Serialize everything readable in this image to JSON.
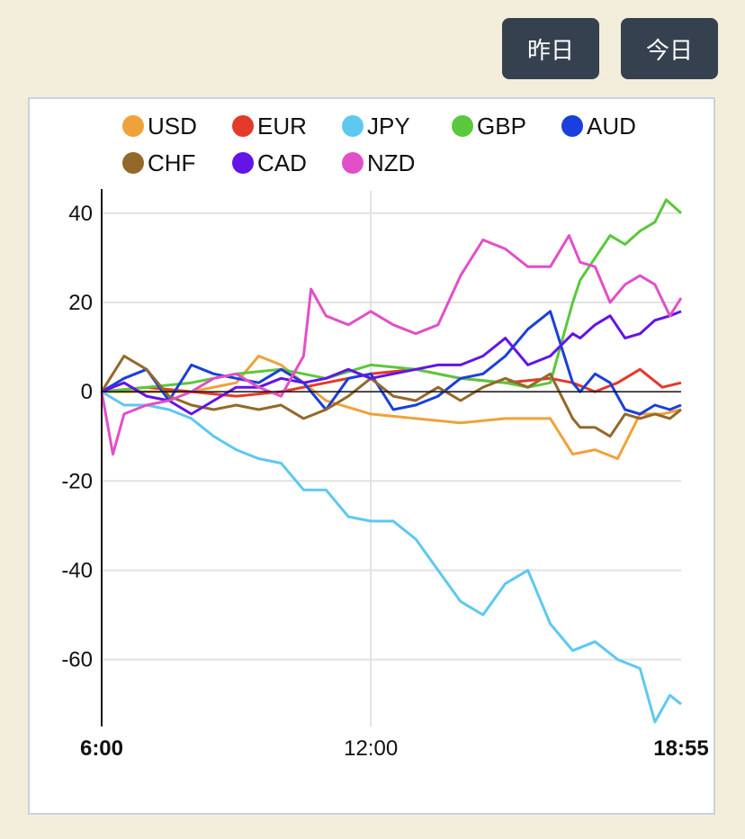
{
  "buttons": {
    "yesterday": "昨日",
    "today": "今日"
  },
  "chart_data": {
    "type": "line",
    "title": "",
    "xlabel": "",
    "ylabel": "",
    "ylim": [
      -75,
      45
    ],
    "yticks": [
      40,
      20,
      0,
      -20,
      -40,
      -60
    ],
    "xlim": [
      360,
      1135
    ],
    "xticks": [
      {
        "value": 360,
        "label": "6:00",
        "bold": true
      },
      {
        "value": 720,
        "label": "12:00",
        "bold": false
      },
      {
        "value": 1135,
        "label": "18:55",
        "bold": true
      }
    ],
    "grid": true,
    "legend_position": "top",
    "series": [
      {
        "name": "USD",
        "color": "#f0a23a",
        "x": [
          360,
          420,
          480,
          540,
          570,
          600,
          660,
          720,
          780,
          840,
          900,
          960,
          990,
          1020,
          1050,
          1080,
          1110,
          1135
        ],
        "values": [
          0,
          0,
          0,
          2,
          8,
          6,
          -2,
          -5,
          -6,
          -7,
          -6,
          -6,
          -14,
          -13,
          -15,
          -5,
          -5,
          -4
        ]
      },
      {
        "name": "EUR",
        "color": "#e33a2a",
        "x": [
          360,
          420,
          480,
          540,
          600,
          660,
          720,
          780,
          840,
          900,
          960,
          990,
          1020,
          1050,
          1080,
          1110,
          1135
        ],
        "values": [
          0,
          1,
          0,
          -1,
          0,
          2,
          4,
          5,
          3,
          2,
          3,
          2,
          0,
          2,
          5,
          1,
          2
        ]
      },
      {
        "name": "JPY",
        "color": "#5ec8f0",
        "x": [
          360,
          390,
          420,
          450,
          480,
          510,
          540,
          570,
          600,
          630,
          660,
          690,
          720,
          750,
          780,
          810,
          840,
          870,
          900,
          930,
          960,
          990,
          1020,
          1050,
          1080,
          1100,
          1120,
          1135
        ],
        "values": [
          0,
          -3,
          -3,
          -4,
          -6,
          -10,
          -13,
          -15,
          -16,
          -22,
          -22,
          -28,
          -29,
          -29,
          -33,
          -40,
          -47,
          -50,
          -43,
          -40,
          -52,
          -58,
          -56,
          -60,
          -62,
          -74,
          -68,
          -70
        ]
      },
      {
        "name": "GBP",
        "color": "#5ac83c",
        "x": [
          360,
          420,
          480,
          540,
          600,
          660,
          720,
          780,
          840,
          900,
          930,
          960,
          990,
          1000,
          1020,
          1040,
          1060,
          1080,
          1100,
          1115,
          1135
        ],
        "values": [
          0,
          1,
          2,
          4,
          5,
          3,
          6,
          5,
          3,
          2,
          1,
          2,
          20,
          25,
          30,
          35,
          33,
          36,
          38,
          43,
          40
        ]
      },
      {
        "name": "AUD",
        "color": "#1a3fdc",
        "x": [
          360,
          390,
          420,
          450,
          480,
          510,
          540,
          570,
          600,
          630,
          660,
          690,
          720,
          750,
          780,
          810,
          840,
          870,
          900,
          930,
          960,
          990,
          1000,
          1020,
          1040,
          1060,
          1080,
          1100,
          1120,
          1135
        ],
        "values": [
          0,
          3,
          5,
          -2,
          6,
          4,
          3,
          2,
          5,
          2,
          -4,
          3,
          4,
          -4,
          -3,
          -1,
          3,
          4,
          8,
          14,
          18,
          2,
          0,
          4,
          2,
          -4,
          -5,
          -3,
          -4,
          -3
        ]
      },
      {
        "name": "CHF",
        "color": "#93692a",
        "x": [
          360,
          390,
          420,
          450,
          480,
          510,
          540,
          570,
          600,
          630,
          660,
          690,
          720,
          750,
          780,
          810,
          840,
          870,
          900,
          930,
          960,
          990,
          1000,
          1020,
          1040,
          1060,
          1080,
          1100,
          1120,
          1135
        ],
        "values": [
          0,
          8,
          5,
          -1,
          -3,
          -4,
          -3,
          -4,
          -3,
          -6,
          -4,
          -1,
          3,
          -1,
          -2,
          1,
          -2,
          1,
          3,
          1,
          4,
          -6,
          -8,
          -8,
          -10,
          -5,
          -6,
          -5,
          -6,
          -4
        ]
      },
      {
        "name": "CAD",
        "color": "#6314e6",
        "x": [
          360,
          390,
          420,
          450,
          480,
          510,
          540,
          570,
          600,
          630,
          660,
          690,
          720,
          750,
          780,
          810,
          840,
          870,
          900,
          930,
          960,
          990,
          1000,
          1020,
          1040,
          1060,
          1080,
          1100,
          1120,
          1135
        ],
        "values": [
          0,
          2,
          -1,
          -2,
          -5,
          -2,
          1,
          1,
          3,
          2,
          3,
          5,
          3,
          4,
          5,
          6,
          6,
          8,
          12,
          6,
          8,
          13,
          12,
          15,
          17,
          12,
          13,
          16,
          17,
          18
        ]
      },
      {
        "name": "NZD",
        "color": "#e24fc8",
        "x": [
          360,
          375,
          390,
          420,
          450,
          480,
          510,
          540,
          570,
          600,
          630,
          640,
          660,
          690,
          720,
          750,
          780,
          810,
          840,
          870,
          900,
          930,
          960,
          985,
          1000,
          1020,
          1040,
          1060,
          1080,
          1100,
          1120,
          1135
        ],
        "values": [
          0,
          -14,
          -5,
          -3,
          -2,
          0,
          3,
          4,
          1,
          -1,
          8,
          23,
          17,
          15,
          18,
          15,
          13,
          15,
          26,
          34,
          32,
          28,
          28,
          35,
          29,
          28,
          20,
          24,
          26,
          24,
          17,
          21
        ]
      }
    ]
  }
}
